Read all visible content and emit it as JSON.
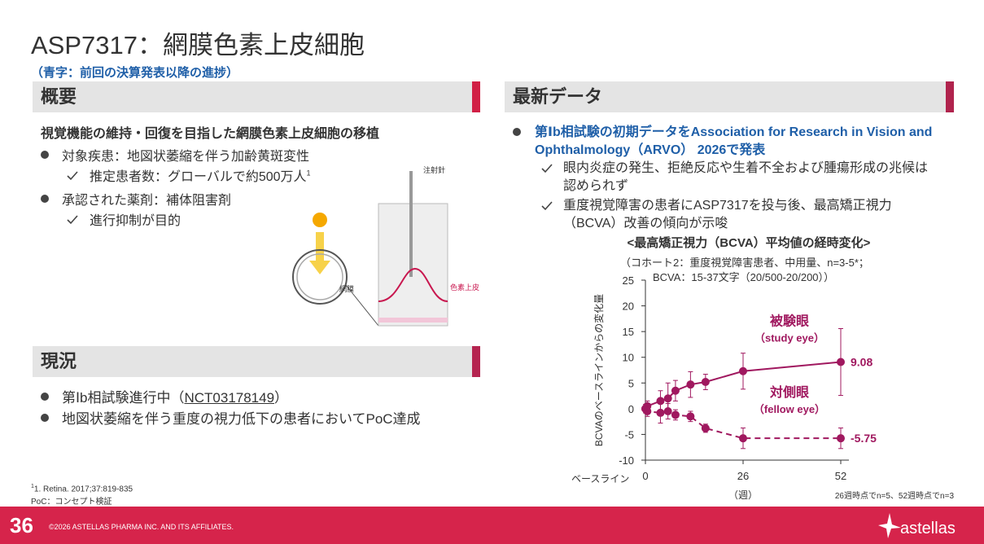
{
  "header": {
    "title": "ASP7317：網膜色素上皮細胞",
    "subtitle": "（青字：前回の決算発表以降の進捗）"
  },
  "overview": {
    "heading": "概要",
    "lead": "視覚機能の維持・回復を目指した網膜色素上皮細胞の移植",
    "items": [
      {
        "text": "対象疾患：地図状萎縮を伴う加齢黄斑変性",
        "sub": "推定患者数：グローバルで約500万人",
        "sup": "1"
      },
      {
        "text": "承認された薬剤：補体阻害剤",
        "sub": "進行抑制が目的"
      }
    ]
  },
  "figure": {
    "needle": "注射針",
    "retina": "網膜",
    "rpe": "色素上皮"
  },
  "status": {
    "heading": "現況",
    "items": [
      {
        "prefix": "第Ⅰb相試験進行中（",
        "link": "NCT03178149",
        "suffix": "）"
      },
      {
        "text": "地図状萎縮を伴う重度の視力低下の患者においてPoC達成"
      }
    ]
  },
  "latest": {
    "heading": "最新データ",
    "highlight": "第Ⅰb相試験の初期データをAssociation for Research in Vision and Ophthalmology（ARVO） 2026で発表",
    "checks": [
      "眼内炎症の発生、拒絶反応や生着不全および腫瘍形成の兆候は認められず",
      "重度視覚障害の患者にASP7317を投与後、最高矯正視力（BCVA）改善の傾向が示唆"
    ]
  },
  "chart_data": {
    "type": "line",
    "title": "<最高矯正視力（BCVA）平均値の経時変化>",
    "notes": [
      "（コホート2：重度視覚障害患者、中用量、n=3-5*；",
      "BCVA：15-37文字（20/500-20/200））"
    ],
    "ylabel": "BCVAのベースラインからの変化量",
    "xlabel": "（週）",
    "baseline_label": "ベースライン",
    "footnote": "26週時点でn=5、52週時点でn=3",
    "x": [
      0,
      0.5,
      4,
      6,
      8,
      12,
      16,
      26,
      52
    ],
    "xlim": [
      0,
      52
    ],
    "xticks": [
      0,
      26,
      52
    ],
    "ylim": [
      -10,
      25
    ],
    "yticks": [
      -10,
      -5,
      0,
      5,
      10,
      15,
      20,
      25
    ],
    "series": [
      {
        "name": "被験眼",
        "name_en": "（study eye）",
        "color": "#a0185f",
        "dash": false,
        "values": [
          0,
          0.5,
          1.5,
          2,
          3.5,
          4.7,
          5.2,
          7.3,
          9.08
        ],
        "errors": [
          0.8,
          1,
          2,
          3,
          2,
          2.5,
          1.5,
          3.5,
          6.5
        ]
      },
      {
        "name": "対側眼",
        "name_en": "（fellow eye）",
        "color": "#a0185f",
        "dash": true,
        "values": [
          0,
          -0.5,
          -0.8,
          -0.5,
          -1.2,
          -1.5,
          -3.8,
          -5.75,
          -5.75
        ],
        "errors": [
          0.8,
          1,
          2,
          1.5,
          1,
          1,
          0.8,
          2,
          2
        ]
      }
    ]
  },
  "footnotes": [
    {
      "sup": "1",
      "text": "1. Retina. 2017;37:819-835"
    },
    {
      "text": "PoC：コンセプト検証"
    }
  ],
  "footer": {
    "page": "36",
    "copyright": "©2026 ASTELLAS PHARMA INC. AND ITS AFFILIATES.",
    "logo": "astellas"
  }
}
